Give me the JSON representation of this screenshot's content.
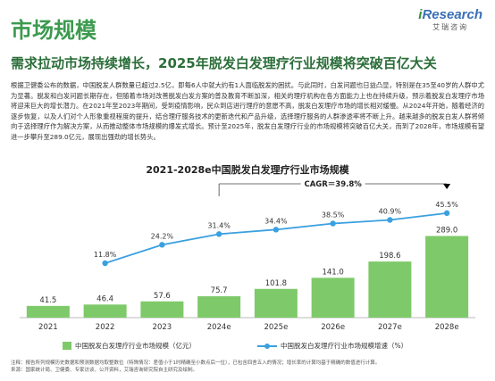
{
  "logo": {
    "brand": "Research",
    "brand_prefix": "i",
    "sub": "艾瑞咨询"
  },
  "section_title": "市场规模",
  "headline": "需求拉动市场持续增长，2025年脱发白发理疗行业规模将突破百亿大关",
  "paragraph": "根据卫健委公布的数据，中国脱发人群数量已超过2.5亿，即每6人中就大约有1人面临脱发的困扰。与此同时，白发问题也日益凸显，特别是在35至40岁的人群中尤为显著。脱发和白发问题长期存在，但随着市场对改善脱发白发方案的普及教育不断加深，相关的理疗机构在各方面能力上也在持续升级，预示着脱发白发理疗市场将迎来巨大的增长潜力。在2021年至2023年期间，受到疫情影响，民众到店进行理疗的意愿不高，脱发白发理疗市场的增长相对缓慢。从2024年开始，随着经济的逐步恢复，以及人们对个人形象重视程度的提升，结合理疗服务技术的更新迭代和产品升级，选择理疗服务的人群渗透率将不断上升。越来越多的脱发白发人群将倾向于选择理疗作为解决方案，从而推动整体市场规模的爆发式增长。预计至2025年，脱发白发理疗行业的市场规模将突破百亿大关，而到了2028年，市场规模有望进一步攀升至289.0亿元，展现出强劲的增长势头。",
  "chart_data": {
    "type": "bar",
    "title": "2021-2028e中国脱发白发理疗行业市场规模",
    "categories": [
      "2021",
      "2022",
      "2023",
      "2024e",
      "2025e",
      "2026e",
      "2027e",
      "2028e"
    ],
    "series": [
      {
        "name": "中国脱发白发理疗行业市场规模（亿元）",
        "type": "bar",
        "values": [
          41.5,
          46.4,
          57.6,
          75.7,
          101.8,
          141.0,
          198.6,
          289.0
        ],
        "labels": [
          "41.5",
          "46.4",
          "57.6",
          "75.7",
          "101.8",
          "141.0",
          "198.6",
          "289.0"
        ],
        "color": "#7ec96a"
      },
      {
        "name": "中国脱发白发理疗行业市场规模增速（%）",
        "type": "line",
        "values": [
          null,
          11.8,
          24.2,
          31.4,
          34.4,
          38.5,
          40.9,
          45.5
        ],
        "labels": [
          "",
          "11.8%",
          "24.2%",
          "31.4%",
          "34.4%",
          "38.5%",
          "40.9%",
          "45.5%"
        ],
        "color": "#3aa0e0"
      }
    ],
    "annotation": "CAGR＝39.8%",
    "grid": false
  },
  "notes": [
    "注释：报告所列规模历史数据和预测数据均取整数位（特殊情况：差值小于1时精确至小数点后一位），已包含四舍五入的情况；增长率的计算均基于精确的数值进行计算。",
    "来源：国家统计局、卫健委、专家访谈、公开资料，艾瑞咨询研究院自主研究及绘制。"
  ]
}
